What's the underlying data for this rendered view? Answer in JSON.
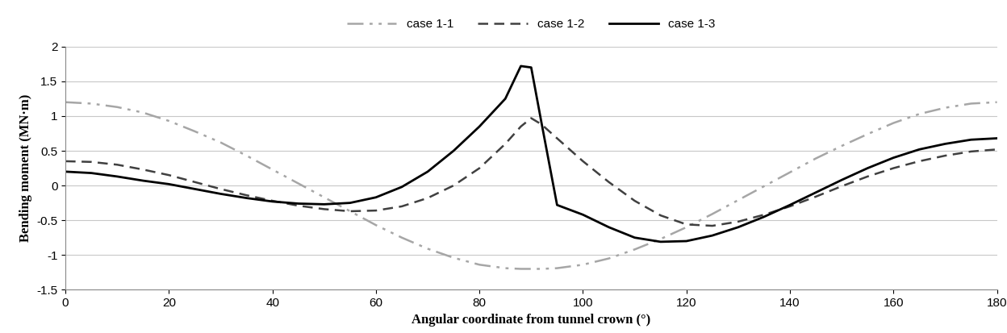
{
  "chart_data": {
    "type": "line",
    "x_label": "Angular coordinate from tunnel crown (°)",
    "y_label": "Bending moment (MN·m)",
    "x": [
      0,
      5,
      10,
      15,
      20,
      25,
      30,
      35,
      40,
      45,
      50,
      55,
      60,
      65,
      70,
      75,
      80,
      85,
      88,
      90,
      92,
      95,
      100,
      105,
      110,
      115,
      120,
      125,
      130,
      135,
      140,
      145,
      150,
      155,
      160,
      165,
      170,
      175,
      180
    ],
    "series": [
      {
        "name": "case 1-1",
        "color": "#a6a6a6",
        "line_style": "dashdotdot",
        "values": [
          1.2,
          1.18,
          1.13,
          1.05,
          0.93,
          0.78,
          0.62,
          0.43,
          0.23,
          0.03,
          -0.17,
          -0.37,
          -0.57,
          -0.75,
          -0.91,
          -1.04,
          -1.14,
          -1.19,
          -1.2,
          -1.2,
          -1.2,
          -1.19,
          -1.14,
          -1.05,
          -0.92,
          -0.77,
          -0.6,
          -0.41,
          -0.21,
          -0.01,
          0.19,
          0.39,
          0.57,
          0.74,
          0.9,
          1.03,
          1.12,
          1.18,
          1.2
        ]
      },
      {
        "name": "case 1-2",
        "color": "#404040",
        "line_style": "dashed",
        "values": [
          0.35,
          0.34,
          0.3,
          0.23,
          0.15,
          0.05,
          -0.05,
          -0.14,
          -0.22,
          -0.29,
          -0.34,
          -0.37,
          -0.36,
          -0.3,
          -0.18,
          0.0,
          0.25,
          0.6,
          0.85,
          0.97,
          0.88,
          0.68,
          0.35,
          0.05,
          -0.22,
          -0.43,
          -0.56,
          -0.58,
          -0.52,
          -0.42,
          -0.3,
          -0.16,
          -0.01,
          0.13,
          0.25,
          0.35,
          0.43,
          0.49,
          0.52
        ]
      },
      {
        "name": "case 1-3",
        "color": "#000000",
        "line_style": "solid",
        "values": [
          0.2,
          0.18,
          0.13,
          0.07,
          0.02,
          -0.05,
          -0.12,
          -0.18,
          -0.23,
          -0.26,
          -0.27,
          -0.25,
          -0.17,
          -0.02,
          0.2,
          0.5,
          0.85,
          1.25,
          1.72,
          1.7,
          0.9,
          -0.28,
          -0.42,
          -0.6,
          -0.75,
          -0.81,
          -0.8,
          -0.72,
          -0.6,
          -0.45,
          -0.28,
          -0.1,
          0.08,
          0.25,
          0.4,
          0.52,
          0.6,
          0.66,
          0.68
        ]
      }
    ],
    "xlim": [
      0,
      180
    ],
    "xticks": [
      0,
      20,
      40,
      60,
      80,
      100,
      120,
      140,
      160,
      180
    ],
    "ylim": [
      -1.5,
      2
    ],
    "yticks": [
      -1.5,
      -1,
      -0.5,
      0,
      0.5,
      1,
      1.5,
      2
    ],
    "grid": true,
    "legend": "upper center"
  }
}
